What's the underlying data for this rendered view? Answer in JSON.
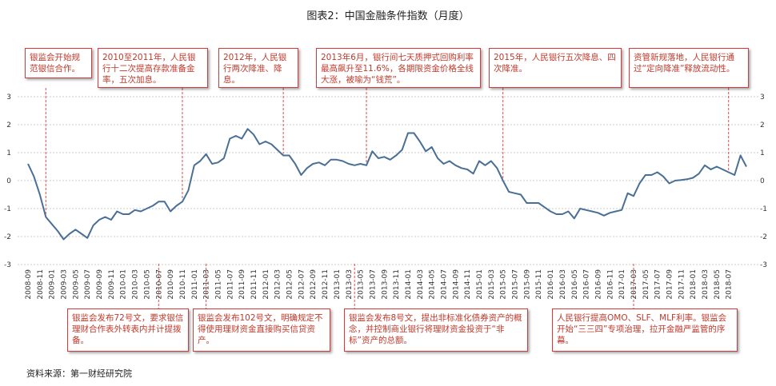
{
  "title": "图表2：中国金融条件指数（月度）",
  "source": "资料来源：第一财经研究院",
  "chart_data": {
    "type": "line",
    "title": "图表2：中国金融条件指数（月度）",
    "xlabel": "",
    "ylabel": "",
    "ylim": [
      -3,
      3
    ],
    "y_ticks": [
      "3",
      "2",
      "1",
      "0",
      "-1",
      "-2",
      "-3"
    ],
    "grid": true,
    "x_tick_labels": [
      "2008-09",
      "2008-11",
      "2009-01",
      "2009-03",
      "2009-05",
      "2009-07",
      "2009-09",
      "2009-11",
      "2010-01",
      "2010-03",
      "2010-05",
      "2010-07",
      "2010-09",
      "2010-11",
      "2011-01",
      "2011-03",
      "2011-05",
      "2011-07",
      "2011-09",
      "2011-11",
      "2012-01",
      "2012-03",
      "2012-05",
      "2012-07",
      "2012-09",
      "2012-11",
      "2013-01",
      "2013-03",
      "2013-05",
      "2013-07",
      "2013-09",
      "2013-11",
      "2014-01",
      "2014-03",
      "2014-05",
      "2014-07",
      "2014-09",
      "2014-11",
      "2015-01",
      "2015-03",
      "2015-05",
      "2015-07",
      "2015-09",
      "2015-11",
      "2016-01",
      "2016-03",
      "2016-05",
      "2016-07",
      "2016-09",
      "2016-11",
      "2017-01",
      "2017-03",
      "2017-05",
      "2017-07",
      "2017-09",
      "2017-11",
      "2018-01",
      "2018-03",
      "2018-05",
      "2018-07"
    ],
    "x_start": "2008-09",
    "x_end": "2018-07",
    "series": [
      {
        "values": [
          0.6,
          0.15,
          -0.5,
          -1.3,
          -1.55,
          -1.8,
          -2.1,
          -1.9,
          -1.75,
          -1.9,
          -2.05,
          -1.6,
          -1.4,
          -1.3,
          -1.4,
          -1.1,
          -1.2,
          -1.2,
          -1.05,
          -1.1,
          -1.0,
          -0.9,
          -0.75,
          -0.75,
          -1.1,
          -0.9,
          -0.75,
          -0.35,
          0.55,
          0.7,
          0.95,
          0.6,
          0.65,
          0.8,
          1.5,
          1.6,
          1.5,
          1.85,
          1.65,
          1.3,
          1.4,
          1.3,
          1.1,
          0.9,
          0.9,
          0.6,
          0.2,
          0.45,
          0.6,
          0.65,
          0.55,
          0.75,
          0.75,
          0.7,
          0.6,
          0.55,
          0.6,
          0.55,
          1.05,
          0.8,
          0.85,
          0.75,
          0.9,
          1.1,
          1.7,
          1.7,
          1.4,
          1.05,
          1.2,
          0.8,
          0.6,
          0.7,
          0.55,
          0.45,
          0.4,
          0.25,
          0.7,
          0.55,
          0.7,
          0.45,
          0.0,
          -0.4,
          -0.45,
          -0.5,
          -0.8,
          -0.8,
          -0.8,
          -0.95,
          -1.1,
          -1.2,
          -1.2,
          -1.1,
          -1.35,
          -1.0,
          -1.05,
          -1.1,
          -1.15,
          -1.25,
          -1.15,
          -1.1,
          -1.05,
          -0.45,
          -0.55,
          -0.1,
          0.2,
          0.2,
          0.3,
          0.15,
          -0.1,
          0.0,
          0.02,
          0.05,
          0.1,
          0.25,
          0.55,
          0.4,
          0.5,
          0.4,
          0.3,
          0.2,
          0.9,
          0.5
        ],
        "color": "#4a6f96"
      }
    ],
    "annotations": [
      {
        "text": "银监会开始规范银信合作。",
        "date_index": 3
      },
      {
        "text": "2010至2011年，人民银行十二次提高存款准备金率，五次加息。",
        "date_index": 26
      },
      {
        "text": "2012年，人民银行两次降准、降息。",
        "date_index": 43
      },
      {
        "text": "2013年6月，银行间七天质押式回购利率最高飙升至11.6%，各期限资金价格全线大涨，被喻为“钱荒”。",
        "date_index": 57
      },
      {
        "text": "2015年，人民银行五次降息、四次降准。",
        "date_index": 80
      },
      {
        "text": "资管新规落地，人民银行通过“定向降准”释放流动性。",
        "date_index": 118
      },
      {
        "text": "银监会发布72号文，要求银信理财合作表外转表内并计提拨备。",
        "date_index": 22
      },
      {
        "text": "银监会发布102号文，明确规定不得使用理财资金直接购买信贷资产。",
        "date_index": 30
      },
      {
        "text": "银监会发布8号文，提出非标准化债券资产的概念，并控制商业银行将理财资金投资于“非标”资产的总额。",
        "date_index": 55
      },
      {
        "text": "人民银行提高OMO、SLF、MLF利率。银监会开始“三三四”专项治理，拉开金融严监管的序幕。",
        "date_index": 102
      }
    ]
  }
}
